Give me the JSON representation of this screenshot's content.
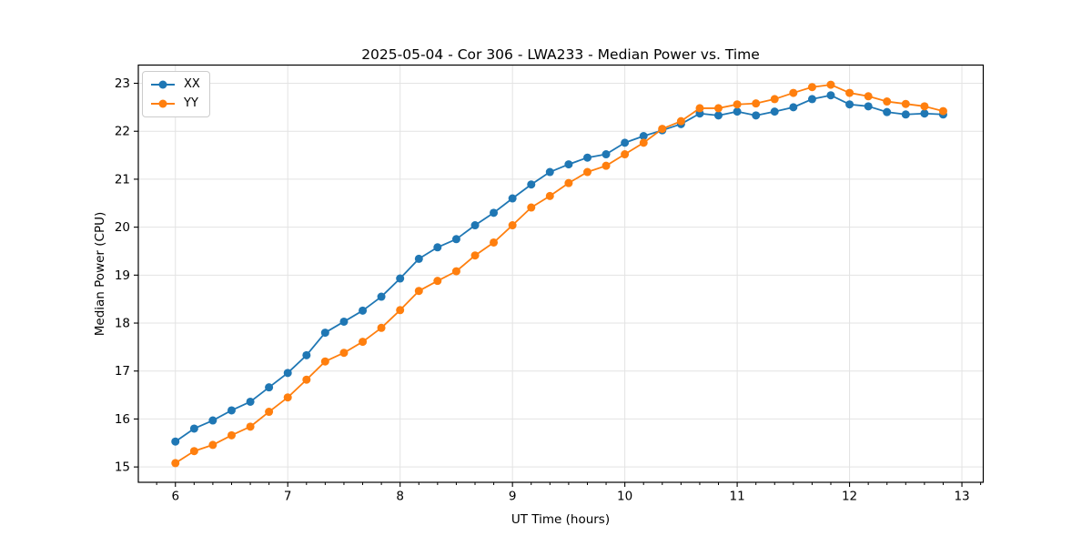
{
  "figure": {
    "title": "2025-05-04 - Cor 306 - LWA233 - Median Power vs. Time",
    "xlabel": "UT Time (hours)",
    "ylabel": "Median Power (CPU)"
  },
  "legend": {
    "position": "upper-left",
    "items": [
      {
        "label": "XX",
        "color": "#1f77b4"
      },
      {
        "label": "YY",
        "color": "#ff7f0e"
      }
    ]
  },
  "style": {
    "grid_color": "#e3e3e3",
    "spine_color": "#000000",
    "text_color": "#000000",
    "background": "#ffffff"
  },
  "chart_data": {
    "type": "line",
    "title": "2025-05-04 - Cor 306 - LWA233 - Median Power vs. Time",
    "xlabel": "UT Time (hours)",
    "ylabel": "Median Power (CPU)",
    "grid": true,
    "legend_position": "upper left",
    "xlim": [
      5.67,
      13.19
    ],
    "ylim": [
      14.68,
      23.38
    ],
    "x_ticks": [
      6,
      7,
      8,
      9,
      10,
      11,
      12,
      13
    ],
    "y_ticks": [
      15,
      16,
      17,
      18,
      19,
      20,
      21,
      22,
      23
    ],
    "x_minor_tick_step": 0.16667,
    "marker": "circle",
    "x": [
      6.0,
      6.167,
      6.333,
      6.5,
      6.667,
      6.833,
      7.0,
      7.167,
      7.333,
      7.5,
      7.667,
      7.833,
      8.0,
      8.167,
      8.333,
      8.5,
      8.667,
      8.833,
      9.0,
      9.167,
      9.333,
      9.5,
      9.667,
      9.833,
      10.0,
      10.167,
      10.333,
      10.5,
      10.667,
      10.833,
      11.0,
      11.167,
      11.333,
      11.5,
      11.667,
      11.833,
      12.0,
      12.167,
      12.333,
      12.5,
      12.667,
      12.833
    ],
    "series": [
      {
        "name": "XX",
        "color": "#1f77b4",
        "values": [
          15.53,
          15.8,
          15.97,
          16.18,
          16.36,
          16.66,
          16.96,
          17.33,
          17.8,
          18.03,
          18.26,
          18.55,
          18.93,
          19.34,
          19.58,
          19.75,
          20.04,
          20.3,
          20.6,
          20.89,
          21.15,
          21.31,
          21.45,
          21.52,
          21.76,
          21.9,
          22.02,
          22.15,
          22.37,
          22.33,
          22.41,
          22.33,
          22.41,
          22.5,
          22.67,
          22.75,
          22.56,
          22.52,
          22.4,
          22.35,
          22.37,
          22.35
        ]
      },
      {
        "name": "YY",
        "color": "#ff7f0e",
        "values": [
          15.08,
          15.33,
          15.46,
          15.66,
          15.84,
          16.15,
          16.45,
          16.82,
          17.2,
          17.38,
          17.61,
          17.9,
          18.27,
          18.67,
          18.88,
          19.08,
          19.41,
          19.68,
          20.04,
          20.41,
          20.65,
          20.92,
          21.15,
          21.28,
          21.52,
          21.76,
          22.05,
          22.21,
          22.48,
          22.48,
          22.56,
          22.58,
          22.67,
          22.8,
          22.92,
          22.97,
          22.8,
          22.73,
          22.62,
          22.57,
          22.52,
          22.42
        ]
      }
    ]
  }
}
